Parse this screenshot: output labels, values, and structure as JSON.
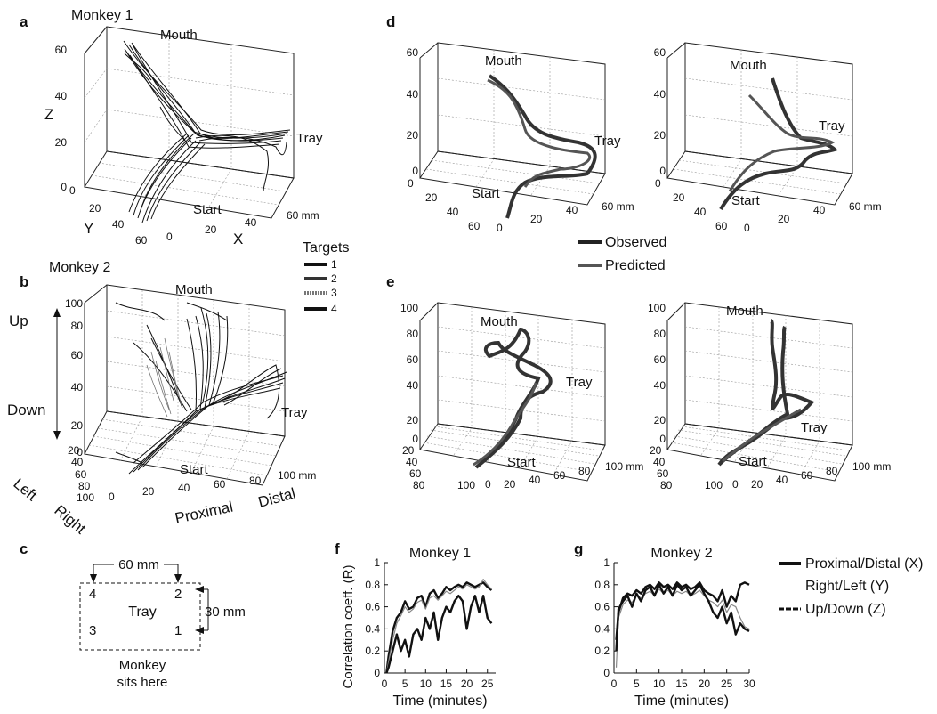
{
  "panels": {
    "a": {
      "letter": "a",
      "title": "Monkey 1",
      "x_label": "X",
      "y_label": "Y",
      "z_label": "Z",
      "x_ticks": [
        "0",
        "20",
        "40",
        "60 mm"
      ],
      "y_ticks": [
        "0",
        "20",
        "40",
        "60"
      ],
      "z_ticks": [
        "0",
        "20",
        "40",
        "60"
      ],
      "labels": {
        "mouth": "Mouth",
        "tray": "Tray",
        "start": "Start"
      }
    },
    "b": {
      "letter": "b",
      "title": "Monkey 2",
      "x_label_low": "Proximal",
      "x_label_high": "Distal",
      "y_label_low": "Left",
      "y_label_high": "Right",
      "z_label_high": "Up",
      "z_label_low": "Down",
      "x_ticks": [
        "0",
        "20",
        "40",
        "60",
        "80",
        "100 mm"
      ],
      "y_ticks": [
        "20",
        "40",
        "60",
        "80",
        "100"
      ],
      "z_ticks": [
        "0",
        "20",
        "40",
        "60",
        "80",
        "100"
      ],
      "labels": {
        "mouth": "Mouth",
        "tray": "Tray",
        "start": "Start"
      }
    },
    "legend_targets": {
      "title": "Targets",
      "items": [
        "1",
        "2",
        "3",
        "4"
      ]
    },
    "c": {
      "letter": "c",
      "width_label": "60 mm",
      "height_label": "30 mm",
      "center_label": "Tray",
      "corners": [
        "4",
        "2",
        "3",
        "1"
      ],
      "caption_line1": "Monkey",
      "caption_line2": "sits here"
    },
    "d": {
      "letter": "d",
      "x_ticks": [
        "0",
        "20",
        "40",
        "60 mm"
      ],
      "y_ticks": [
        "0",
        "20",
        "40",
        "60"
      ],
      "z_ticks": [
        "0",
        "20",
        "40",
        "60"
      ],
      "labels": {
        "mouth": "Mouth",
        "tray": "Tray",
        "start": "Start"
      }
    },
    "legend_obs": {
      "observed": "Observed",
      "predicted": "Predicted"
    },
    "e": {
      "letter": "e",
      "x_ticks": [
        "0",
        "20",
        "40",
        "60",
        "80",
        "100 mm"
      ],
      "y_ticks": [
        "20",
        "40",
        "60",
        "80",
        "100"
      ],
      "z_ticks": [
        "0",
        "20",
        "40",
        "60",
        "80",
        "100"
      ],
      "labels": {
        "mouth": "Mouth",
        "tray": "Tray",
        "start": "Start"
      }
    },
    "legend_fg": {
      "x": "Proximal/Distal (X)",
      "y": "Right/Left (Y)",
      "z": "Up/Down (Z)"
    }
  },
  "chart_data": [
    {
      "type": "line",
      "panel": "f",
      "title": "Monkey 1",
      "xlabel": "Time (minutes)",
      "ylabel": "Correlation coeff. (R)",
      "xlim": [
        0,
        27
      ],
      "ylim": [
        0,
        1
      ],
      "x_ticks": [
        0,
        5,
        10,
        15,
        20,
        25
      ],
      "y_ticks": [
        0,
        0.2,
        0.4,
        0.6,
        0.8,
        1
      ],
      "x": [
        0.5,
        1,
        2,
        3,
        4,
        5,
        6,
        7,
        8,
        9,
        10,
        11,
        12,
        13,
        14,
        15,
        16,
        17,
        18,
        19,
        20,
        21,
        22,
        23,
        24,
        25,
        26
      ],
      "series": [
        {
          "name": "Proximal/Distal (X)",
          "values": [
            0,
            0.15,
            0.38,
            0.5,
            0.55,
            0.65,
            0.58,
            0.6,
            0.68,
            0.7,
            0.6,
            0.72,
            0.75,
            0.68,
            0.72,
            0.78,
            0.75,
            0.78,
            0.8,
            0.78,
            0.82,
            0.8,
            0.78,
            0.8,
            0.82,
            0.78,
            0.75
          ]
        },
        {
          "name": "Right/Left (Y)",
          "values": [
            0,
            0.1,
            0.3,
            0.45,
            0.52,
            0.6,
            0.55,
            0.58,
            0.64,
            0.66,
            0.58,
            0.68,
            0.7,
            0.66,
            0.7,
            0.74,
            0.72,
            0.75,
            0.78,
            0.76,
            0.8,
            0.78,
            0.76,
            0.78,
            0.85,
            0.8,
            0.76
          ]
        },
        {
          "name": "Up/Down (Z)",
          "values": [
            0,
            0.05,
            0.2,
            0.35,
            0.2,
            0.3,
            0.15,
            0.35,
            0.4,
            0.3,
            0.5,
            0.4,
            0.55,
            0.3,
            0.5,
            0.6,
            0.55,
            0.65,
            0.7,
            0.65,
            0.4,
            0.6,
            0.7,
            0.55,
            0.7,
            0.5,
            0.45
          ]
        }
      ]
    },
    {
      "type": "line",
      "panel": "g",
      "title": "Monkey 2",
      "xlabel": "Time (minutes)",
      "ylabel": "",
      "xlim": [
        0,
        30
      ],
      "ylim": [
        0,
        1
      ],
      "x_ticks": [
        0,
        5,
        10,
        15,
        20,
        25,
        30
      ],
      "y_ticks": [
        0,
        0.2,
        0.4,
        0.6,
        0.8,
        1
      ],
      "x": [
        0.5,
        1,
        2,
        3,
        4,
        5,
        6,
        7,
        8,
        9,
        10,
        11,
        12,
        13,
        14,
        15,
        16,
        17,
        18,
        19,
        20,
        21,
        22,
        23,
        24,
        25,
        26,
        27,
        28,
        29,
        30
      ],
      "series": [
        {
          "name": "Proximal/Distal (X)",
          "values": [
            0.3,
            0.55,
            0.68,
            0.72,
            0.7,
            0.75,
            0.72,
            0.78,
            0.8,
            0.76,
            0.82,
            0.78,
            0.8,
            0.76,
            0.82,
            0.78,
            0.8,
            0.76,
            0.78,
            0.82,
            0.75,
            0.72,
            0.7,
            0.65,
            0.75,
            0.6,
            0.7,
            0.65,
            0.8,
            0.82,
            0.8
          ]
        },
        {
          "name": "Right/Left (Y)",
          "values": [
            0.05,
            0.5,
            0.62,
            0.66,
            0.64,
            0.7,
            0.68,
            0.72,
            0.74,
            0.7,
            0.76,
            0.72,
            0.75,
            0.7,
            0.74,
            0.72,
            0.74,
            0.7,
            0.72,
            0.75,
            0.7,
            0.66,
            0.64,
            0.6,
            0.66,
            0.55,
            0.62,
            0.6,
            0.5,
            0.42,
            0.4
          ]
        },
        {
          "name": "Up/Down (Z)",
          "values": [
            0.2,
            0.58,
            0.65,
            0.7,
            0.6,
            0.72,
            0.65,
            0.75,
            0.78,
            0.7,
            0.8,
            0.72,
            0.78,
            0.7,
            0.8,
            0.75,
            0.78,
            0.7,
            0.75,
            0.8,
            0.72,
            0.65,
            0.55,
            0.5,
            0.6,
            0.45,
            0.55,
            0.35,
            0.45,
            0.4,
            0.38
          ]
        }
      ]
    }
  ]
}
